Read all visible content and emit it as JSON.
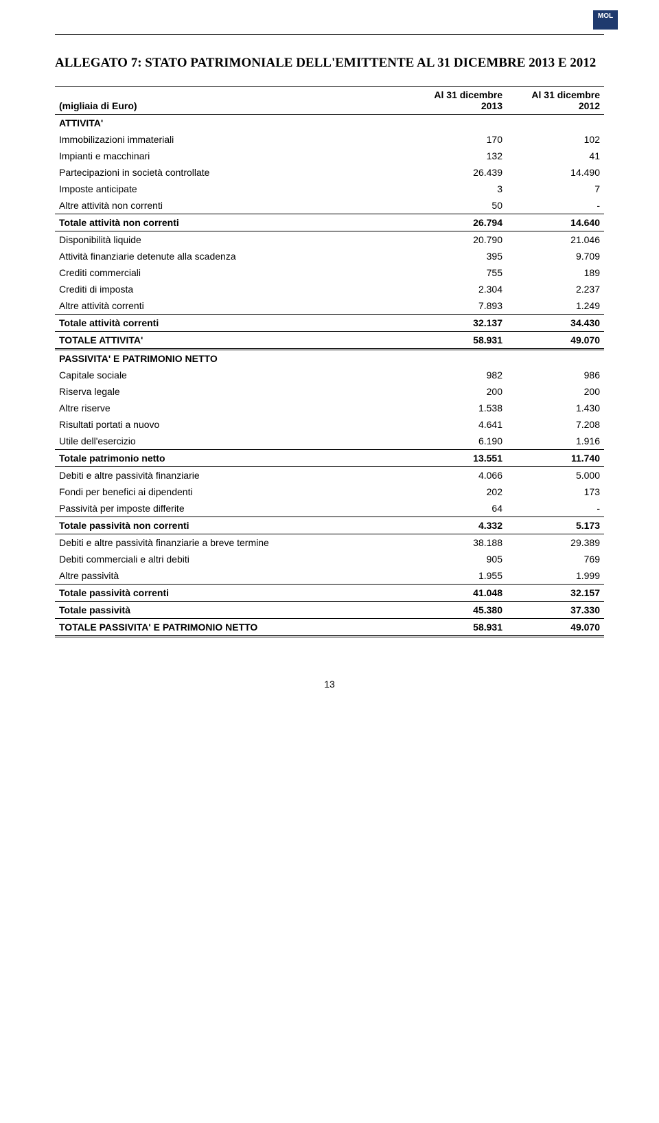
{
  "logo": "MOL",
  "title": "ALLEGATO 7: STATO PATRIMONIALE DELL'EMITTENTE AL 31 DICEMBRE 2013 E 2012",
  "header": {
    "col0": "(migliaia di Euro)",
    "col1a": "Al 31 dicembre",
    "col1b": "2013",
    "col2a": "Al 31 dicembre",
    "col2b": "2012"
  },
  "sections": {
    "attivita_header": "ATTIVITA'",
    "passivita_header": "PASSIVITA' E PATRIMONIO NETTO"
  },
  "rows": {
    "r1": {
      "l": "Immobilizazioni immateriali",
      "a": "170",
      "b": "102"
    },
    "r2": {
      "l": "Impianti e macchinari",
      "a": "132",
      "b": "41"
    },
    "r3": {
      "l": "Partecipazioni in società controllate",
      "a": "26.439",
      "b": "14.490"
    },
    "r4": {
      "l": "Imposte anticipate",
      "a": "3",
      "b": "7"
    },
    "r5": {
      "l": "Altre attività non correnti",
      "a": "50",
      "b": "-"
    },
    "t1": {
      "l": "Totale attività non correnti",
      "a": "26.794",
      "b": "14.640"
    },
    "r6": {
      "l": "Disponibilità liquide",
      "a": "20.790",
      "b": "21.046"
    },
    "r7": {
      "l": "Attività finanziarie detenute alla scadenza",
      "a": "395",
      "b": "9.709"
    },
    "r8": {
      "l": "Crediti commerciali",
      "a": "755",
      "b": "189"
    },
    "r9": {
      "l": "Crediti di imposta",
      "a": "2.304",
      "b": "2.237"
    },
    "r10": {
      "l": "Altre attività correnti",
      "a": "7.893",
      "b": "1.249"
    },
    "t2": {
      "l": "Totale attività correnti",
      "a": "32.137",
      "b": "34.430"
    },
    "t3": {
      "l": "TOTALE ATTIVITA'",
      "a": "58.931",
      "b": "49.070"
    },
    "r11": {
      "l": "Capitale sociale",
      "a": "982",
      "b": "986"
    },
    "r12": {
      "l": "Riserva legale",
      "a": "200",
      "b": "200"
    },
    "r13": {
      "l": "Altre riserve",
      "a": "1.538",
      "b": "1.430"
    },
    "r14": {
      "l": "Risultati portati a nuovo",
      "a": "4.641",
      "b": "7.208"
    },
    "r15": {
      "l": "Utile dell'esercizio",
      "a": "6.190",
      "b": "1.916"
    },
    "t4": {
      "l": "Totale patrimonio netto",
      "a": "13.551",
      "b": "11.740"
    },
    "r16": {
      "l": "Debiti e altre passività finanziarie",
      "a": "4.066",
      "b": "5.000"
    },
    "r17": {
      "l": "Fondi per benefici ai dipendenti",
      "a": "202",
      "b": "173"
    },
    "r18": {
      "l": "Passività per imposte differite",
      "a": "64",
      "b": "-"
    },
    "t5": {
      "l": "Totale passività non correnti",
      "a": "4.332",
      "b": "5.173"
    },
    "r19": {
      "l": "Debiti e altre passività finanziarie a breve termine",
      "a": "38.188",
      "b": "29.389"
    },
    "r20": {
      "l": "Debiti commerciali e altri debiti",
      "a": "905",
      "b": "769"
    },
    "r21": {
      "l": "Altre passività",
      "a": "1.955",
      "b": "1.999"
    },
    "t6": {
      "l": "Totale passività correnti",
      "a": "41.048",
      "b": "32.157"
    },
    "t7": {
      "l": "Totale passività",
      "a": "45.380",
      "b": "37.330"
    },
    "t8": {
      "l": "TOTALE PASSIVITA' E PATRIMONIO NETTO",
      "a": "58.931",
      "b": "49.070"
    }
  },
  "page_number": "13"
}
